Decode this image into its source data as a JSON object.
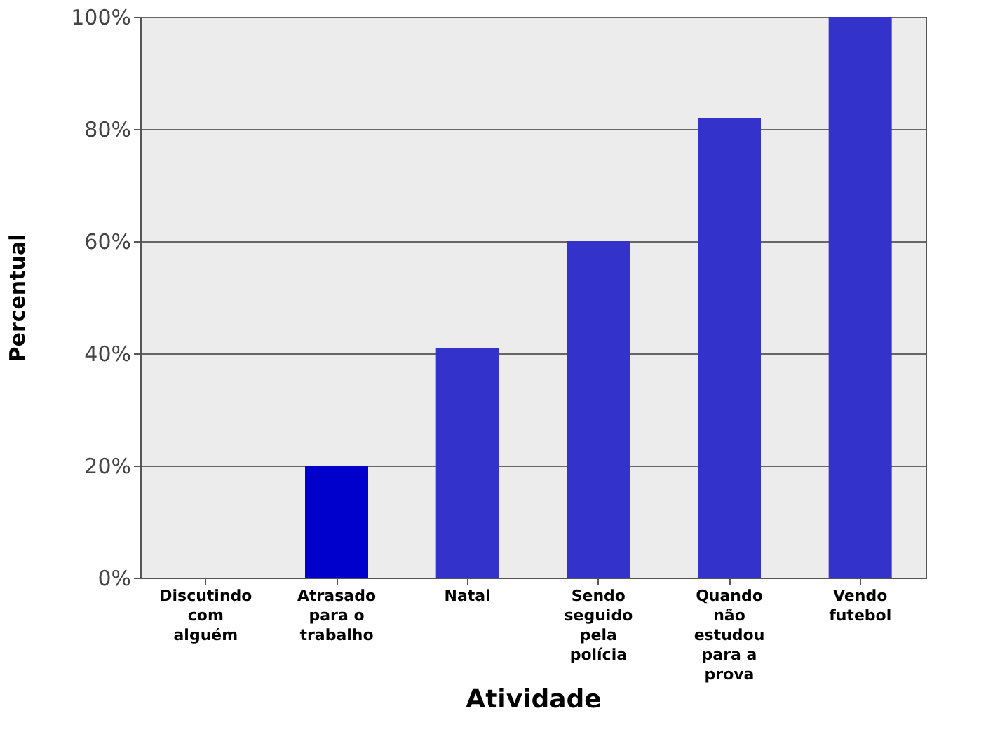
{
  "chart_data": {
    "type": "bar",
    "xlabel": "Atividade",
    "ylabel": "Percentual",
    "categories": [
      "Discutindo\ncom\nalguém",
      "Atrasado\npara o\ntrabalho",
      "Natal",
      "Sendo\nseguido\npela\npolícia",
      "Quando\nnão\nestudou\npara a\nprova",
      "Vendo\nfutebol"
    ],
    "values": [
      0,
      20,
      41,
      60,
      82,
      100
    ],
    "colors": [
      "#0000cc",
      "#0000cc",
      "#3333cc",
      "#3333cc",
      "#3333cc",
      "#3333cc"
    ],
    "ylim": [
      0,
      100
    ],
    "yticks": [
      {
        "value": 0,
        "label": "0%"
      },
      {
        "value": 20,
        "label": "20%"
      },
      {
        "value": 40,
        "label": "40%"
      },
      {
        "value": 60,
        "label": "60%"
      },
      {
        "value": 80,
        "label": "80%"
      },
      {
        "value": 100,
        "label": "100%"
      }
    ],
    "grid": "y"
  }
}
